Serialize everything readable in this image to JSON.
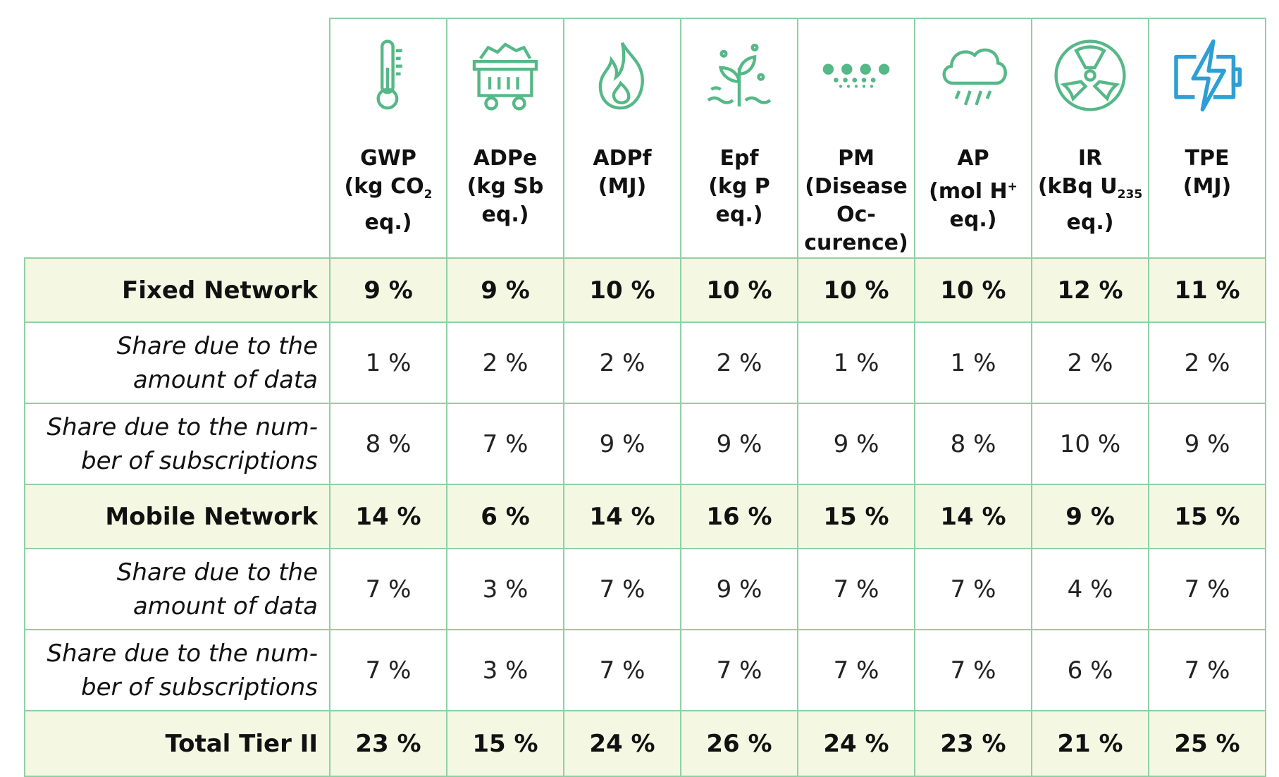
{
  "columns": [
    {
      "icon": "thermometer-icon",
      "name": "GWP",
      "unit_a": "(kg CO",
      "unit_sub": "2",
      "unit_b": " eq.)"
    },
    {
      "icon": "mine-cart-icon",
      "name": "ADPe",
      "unit_a": "(kg Sb eq.)",
      "unit_sub": "",
      "unit_b": ""
    },
    {
      "icon": "flame-icon",
      "name": "ADPf",
      "unit_a": "(MJ)",
      "unit_sub": "",
      "unit_b": ""
    },
    {
      "icon": "plant-water-icon",
      "name": "Epf",
      "unit_a": "(kg P eq.)",
      "unit_sub": "",
      "unit_b": ""
    },
    {
      "icon": "particles-icon",
      "name": "PM",
      "unit_a": "(Disease Oc-curence)",
      "unit_sub": "",
      "unit_b": ""
    },
    {
      "icon": "rain-cloud-icon",
      "name": "AP",
      "unit_a": "(mol H",
      "unit_sup": "+",
      "unit_b": " eq.)"
    },
    {
      "icon": "radiation-icon",
      "name": "IR",
      "unit_a": "(kBq U",
      "unit_sub": "235",
      "unit_b": " eq.)"
    },
    {
      "icon": "battery-bolt-icon",
      "name": "TPE",
      "unit_a": "(MJ)",
      "unit_sub": "",
      "unit_b": ""
    }
  ],
  "rows": [
    {
      "label": "Fixed Network",
      "type": "main",
      "values": [
        "9 %",
        "9 %",
        "10 %",
        "10 %",
        "10 %",
        "10 %",
        "12 %",
        "11 %"
      ]
    },
    {
      "label": "Share due to the amount of data",
      "type": "sub",
      "values": [
        "1 %",
        "2 %",
        "2 %",
        "2 %",
        "1 %",
        "1 %",
        "2 %",
        "2 %"
      ]
    },
    {
      "label": "Share due to the num-ber of subscriptions",
      "type": "sub",
      "values": [
        "8 %",
        "7 %",
        "9 %",
        "9 %",
        "9 %",
        "8 %",
        "10 %",
        "9 %"
      ]
    },
    {
      "label": "Mobile Network",
      "type": "main",
      "values": [
        "14 %",
        "6 %",
        "14 %",
        "16 %",
        "15 %",
        "14 %",
        "9 %",
        "15 %"
      ]
    },
    {
      "label": "Share due to the amount of data",
      "type": "sub",
      "values": [
        "7 %",
        "3 %",
        "7 %",
        "9 %",
        "7 %",
        "7 %",
        "4 %",
        "7 %"
      ]
    },
    {
      "label": "Share due to the num-ber of subscriptions",
      "type": "sub",
      "values": [
        "7 %",
        "3 %",
        "7 %",
        "7 %",
        "7 %",
        "7 %",
        "6 %",
        "7 %"
      ]
    },
    {
      "label": "Total Tier II",
      "type": "total",
      "values": [
        "23 %",
        "15 %",
        "24 %",
        "26 %",
        "24 %",
        "23 %",
        "21 %",
        "25 %"
      ]
    }
  ],
  "colors": {
    "border": "#8fd0a4",
    "icon_green": "#55b887",
    "icon_blue": "#2d9fd4",
    "highlight_row": "#f4f7e2"
  }
}
